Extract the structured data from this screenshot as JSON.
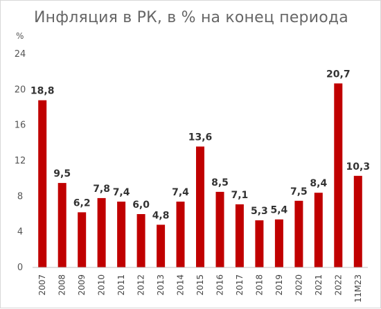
{
  "chart_data": {
    "type": "bar",
    "title": "Инфляция в РК, в % на конец периода",
    "unit_label": "%",
    "categories": [
      "2007",
      "2008",
      "2009",
      "2010",
      "2011",
      "2012",
      "2013",
      "2014",
      "2015",
      "2016",
      "2017",
      "2018",
      "2019",
      "2020",
      "2021",
      "2022",
      "11М23"
    ],
    "values": [
      18.8,
      9.5,
      6.2,
      7.8,
      7.4,
      6.0,
      4.8,
      7.4,
      13.6,
      8.5,
      7.1,
      5.3,
      5.4,
      7.5,
      8.4,
      20.7,
      10.3
    ],
    "data_labels": [
      "18,8",
      "9,5",
      "6,2",
      "7,8",
      "7,4",
      "6,0",
      "4,8",
      "7,4",
      "13,6",
      "8,5",
      "7,1",
      "5,3",
      "5,4",
      "7,5",
      "8,4",
      "20,7",
      "10,3"
    ],
    "ylim": [
      0,
      24
    ],
    "yticks": [
      "0",
      "4",
      "8",
      "12",
      "16",
      "20",
      "24"
    ],
    "grid": false,
    "legend": "none",
    "bar_color": "#C00000",
    "xlabel": "",
    "ylabel": ""
  }
}
